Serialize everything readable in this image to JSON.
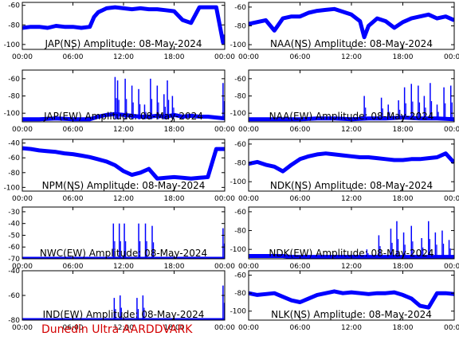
{
  "footer_label": "Dunedin Ultra AARDDVARK",
  "colors": {
    "trace": "#0000ff",
    "footer": "#d40000",
    "frame": "#000000"
  },
  "chart_data": [
    {
      "type": "line",
      "title": "JAP(NS) Amplitude: 08-May-2024",
      "x_ticks": [
        "00:00",
        "06:00",
        "12:00",
        "18:00",
        "00:00"
      ],
      "y_ticks": [
        -100,
        -80,
        -60
      ],
      "ylim": [
        -105,
        -57
      ],
      "xlim": [
        0,
        24
      ],
      "series": [
        {
          "x": [
            0,
            1,
            2,
            3,
            4,
            5,
            6,
            7,
            8,
            8.5,
            9,
            10,
            11,
            12,
            13,
            14,
            15,
            16,
            17,
            18,
            19,
            20,
            21,
            22,
            23,
            23.8,
            24
          ],
          "y": [
            -83,
            -82,
            -82,
            -83,
            -81,
            -82,
            -82,
            -83,
            -82,
            -72,
            -67,
            -63,
            -62,
            -63,
            -64,
            -63,
            -64,
            -64,
            -65,
            -66,
            -75,
            -78,
            -62,
            -62,
            -62,
            -98,
            -90
          ]
        }
      ]
    },
    {
      "type": "line",
      "title": "NAA(NS) Amplitude: 08-May-2024",
      "x_ticks": [
        "00:00",
        "06:00",
        "12:00",
        "18:00",
        "00:00"
      ],
      "y_ticks": [
        -100,
        -80,
        -60
      ],
      "ylim": [
        -105,
        -55
      ],
      "xlim": [
        0,
        24
      ],
      "series": [
        {
          "x": [
            0,
            2,
            3,
            4,
            5,
            6,
            7,
            8,
            9,
            10,
            11,
            12,
            13,
            13.5,
            14,
            15,
            16,
            17,
            18,
            19,
            20,
            21,
            22,
            23,
            24
          ],
          "y": [
            -78,
            -74,
            -85,
            -72,
            -70,
            -70,
            -66,
            -64,
            -63,
            -62,
            -65,
            -68,
            -75,
            -92,
            -80,
            -72,
            -75,
            -82,
            -76,
            -72,
            -70,
            -68,
            -72,
            -70,
            -74
          ]
        }
      ]
    },
    {
      "type": "line",
      "title": "JAP(EW) Amplitude: 08-May-2024",
      "x_ticks": [
        "00:00",
        "06:00",
        "12:00",
        "18:00",
        "00:00"
      ],
      "y_ticks": [
        -100,
        -80,
        -60
      ],
      "ylim": [
        -110,
        -50
      ],
      "xlim": [
        0,
        24
      ],
      "series": [
        {
          "x": [
            0,
            2,
            4,
            6,
            8,
            9,
            10,
            11,
            12,
            13,
            14,
            15,
            16,
            17,
            18,
            19,
            20,
            21,
            22,
            23,
            24
          ],
          "y": [
            -107,
            -107,
            -106,
            -107,
            -107,
            -104,
            -102,
            -101,
            -102,
            -103,
            -104,
            -104,
            -103,
            -104,
            -102,
            -104,
            -103,
            -104,
            -104,
            -105,
            -106
          ]
        }
      ]
    },
    {
      "type": "line",
      "title": "NAA(EW) Amplitude: 08-May-2024",
      "x_ticks": [
        "00:00",
        "06:00",
        "12:00",
        "18:00",
        "00:00"
      ],
      "y_ticks": [
        -100,
        -80,
        -60
      ],
      "ylim": [
        -110,
        -50
      ],
      "xlim": [
        0,
        24
      ],
      "series": [
        {
          "x": [
            0,
            2,
            4,
            6,
            8,
            10,
            12,
            14,
            16,
            18,
            20,
            22,
            24
          ],
          "y": [
            -107,
            -107,
            -107,
            -107,
            -106,
            -106,
            -107,
            -106,
            -106,
            -105,
            -106,
            -106,
            -107
          ]
        }
      ]
    },
    {
      "type": "line",
      "title": "NPM(NS) Amplitude: 08-May-2024",
      "x_ticks": [
        "00:00",
        "06:00",
        "12:00",
        "18:00",
        "00:00"
      ],
      "y_ticks": [
        -100,
        -80,
        -60,
        -40
      ],
      "ylim": [
        -105,
        -35
      ],
      "xlim": [
        0,
        24
      ],
      "series": [
        {
          "x": [
            0,
            1,
            2,
            3,
            4,
            5,
            6,
            7,
            8,
            9,
            10,
            11,
            12,
            13,
            14,
            15,
            16,
            17,
            18,
            19,
            20,
            21,
            22,
            23,
            24
          ],
          "y": [
            -47,
            -48,
            -50,
            -51,
            -52,
            -54,
            -55,
            -57,
            -59,
            -62,
            -65,
            -70,
            -78,
            -83,
            -80,
            -75,
            -88,
            -87,
            -86,
            -87,
            -88,
            -87,
            -86,
            -48,
            -48
          ]
        }
      ]
    },
    {
      "type": "line",
      "title": "NDK(NS) Amplitude: 08-May-2024",
      "x_ticks": [
        "00:00",
        "06:00",
        "12:00",
        "18:00",
        "00:00"
      ],
      "y_ticks": [
        -100,
        -80,
        -60
      ],
      "ylim": [
        -110,
        -55
      ],
      "xlim": [
        0,
        24
      ],
      "series": [
        {
          "x": [
            0,
            1,
            2,
            3,
            4,
            5,
            6,
            7,
            8,
            9,
            10,
            11,
            12,
            13,
            14,
            15,
            16,
            17,
            18,
            19,
            20,
            21,
            22,
            23,
            24
          ],
          "y": [
            -81,
            -79,
            -82,
            -84,
            -89,
            -82,
            -76,
            -73,
            -71,
            -70,
            -71,
            -72,
            -73,
            -74,
            -74,
            -75,
            -76,
            -77,
            -77,
            -76,
            -76,
            -75,
            -74,
            -70,
            -80
          ]
        }
      ]
    },
    {
      "type": "line",
      "title": "NWC(EW) Amplitude: 08-May-2024",
      "x_ticks": [
        "00:00",
        "06:00",
        "12:00",
        "18:00",
        "00:00"
      ],
      "y_ticks": [
        -70,
        -60,
        -50,
        -40,
        -30
      ],
      "ylim": [
        -70,
        -26
      ],
      "xlim": [
        0,
        24
      ],
      "series": [
        {
          "x": [
            0,
            2,
            4,
            6,
            8,
            10,
            12,
            14,
            16,
            18,
            20,
            22,
            24
          ],
          "y": [
            -70,
            -70,
            -70,
            -70,
            -70,
            -70,
            -70,
            -70,
            -70,
            -70,
            -70,
            -70,
            -70
          ]
        }
      ]
    },
    {
      "type": "line",
      "title": "NDK(EW) Amplitude: 08-May-2024",
      "x_ticks": [
        "00:00",
        "06:00",
        "12:00",
        "18:00",
        "00:00"
      ],
      "y_ticks": [
        -100,
        -80,
        -60
      ],
      "ylim": [
        -110,
        -55
      ],
      "xlim": [
        0,
        24
      ],
      "series": [
        {
          "x": [
            0,
            1,
            2,
            3,
            4,
            5,
            6,
            8,
            10,
            12,
            14,
            16,
            18,
            20,
            22,
            24
          ],
          "y": [
            -107,
            -107,
            -107,
            -107,
            -107,
            -108,
            -108,
            -108,
            -108,
            -108,
            -108,
            -108,
            -108,
            -108,
            -108,
            -108
          ]
        }
      ]
    },
    {
      "type": "line",
      "title": "IND(EW) Amplitude: 08-May-2024",
      "x_ticks": [
        "00:00",
        "06:00",
        "12:00",
        "18:00",
        "00:00"
      ],
      "y_ticks": [
        -80,
        -60,
        -40
      ],
      "ylim": [
        -80,
        -40
      ],
      "xlim": [
        0,
        24
      ],
      "series": [
        {
          "x": [
            0,
            4,
            8,
            12,
            16,
            20,
            24
          ],
          "y": [
            -80,
            -80,
            -80,
            -80,
            -80,
            -80,
            -80
          ]
        }
      ]
    },
    {
      "type": "line",
      "title": "NLK(NS) Amplitude: 08-May-2024",
      "x_ticks": [
        "00:00",
        "06:00",
        "12:00",
        "18:00",
        "00:00"
      ],
      "y_ticks": [
        -100,
        -80,
        -60
      ],
      "ylim": [
        -110,
        -55
      ],
      "xlim": [
        0,
        24
      ],
      "series": [
        {
          "x": [
            0,
            1,
            2,
            3,
            4,
            5,
            6,
            7,
            8,
            9,
            10,
            11,
            12,
            13,
            14,
            15,
            16,
            17,
            18,
            19,
            20,
            21,
            22,
            23,
            24
          ],
          "y": [
            -80,
            -82,
            -81,
            -80,
            -84,
            -88,
            -90,
            -86,
            -82,
            -80,
            -78,
            -80,
            -79,
            -80,
            -81,
            -80,
            -80,
            -79,
            -82,
            -86,
            -94,
            -96,
            -80,
            -80,
            -81
          ]
        }
      ]
    }
  ]
}
